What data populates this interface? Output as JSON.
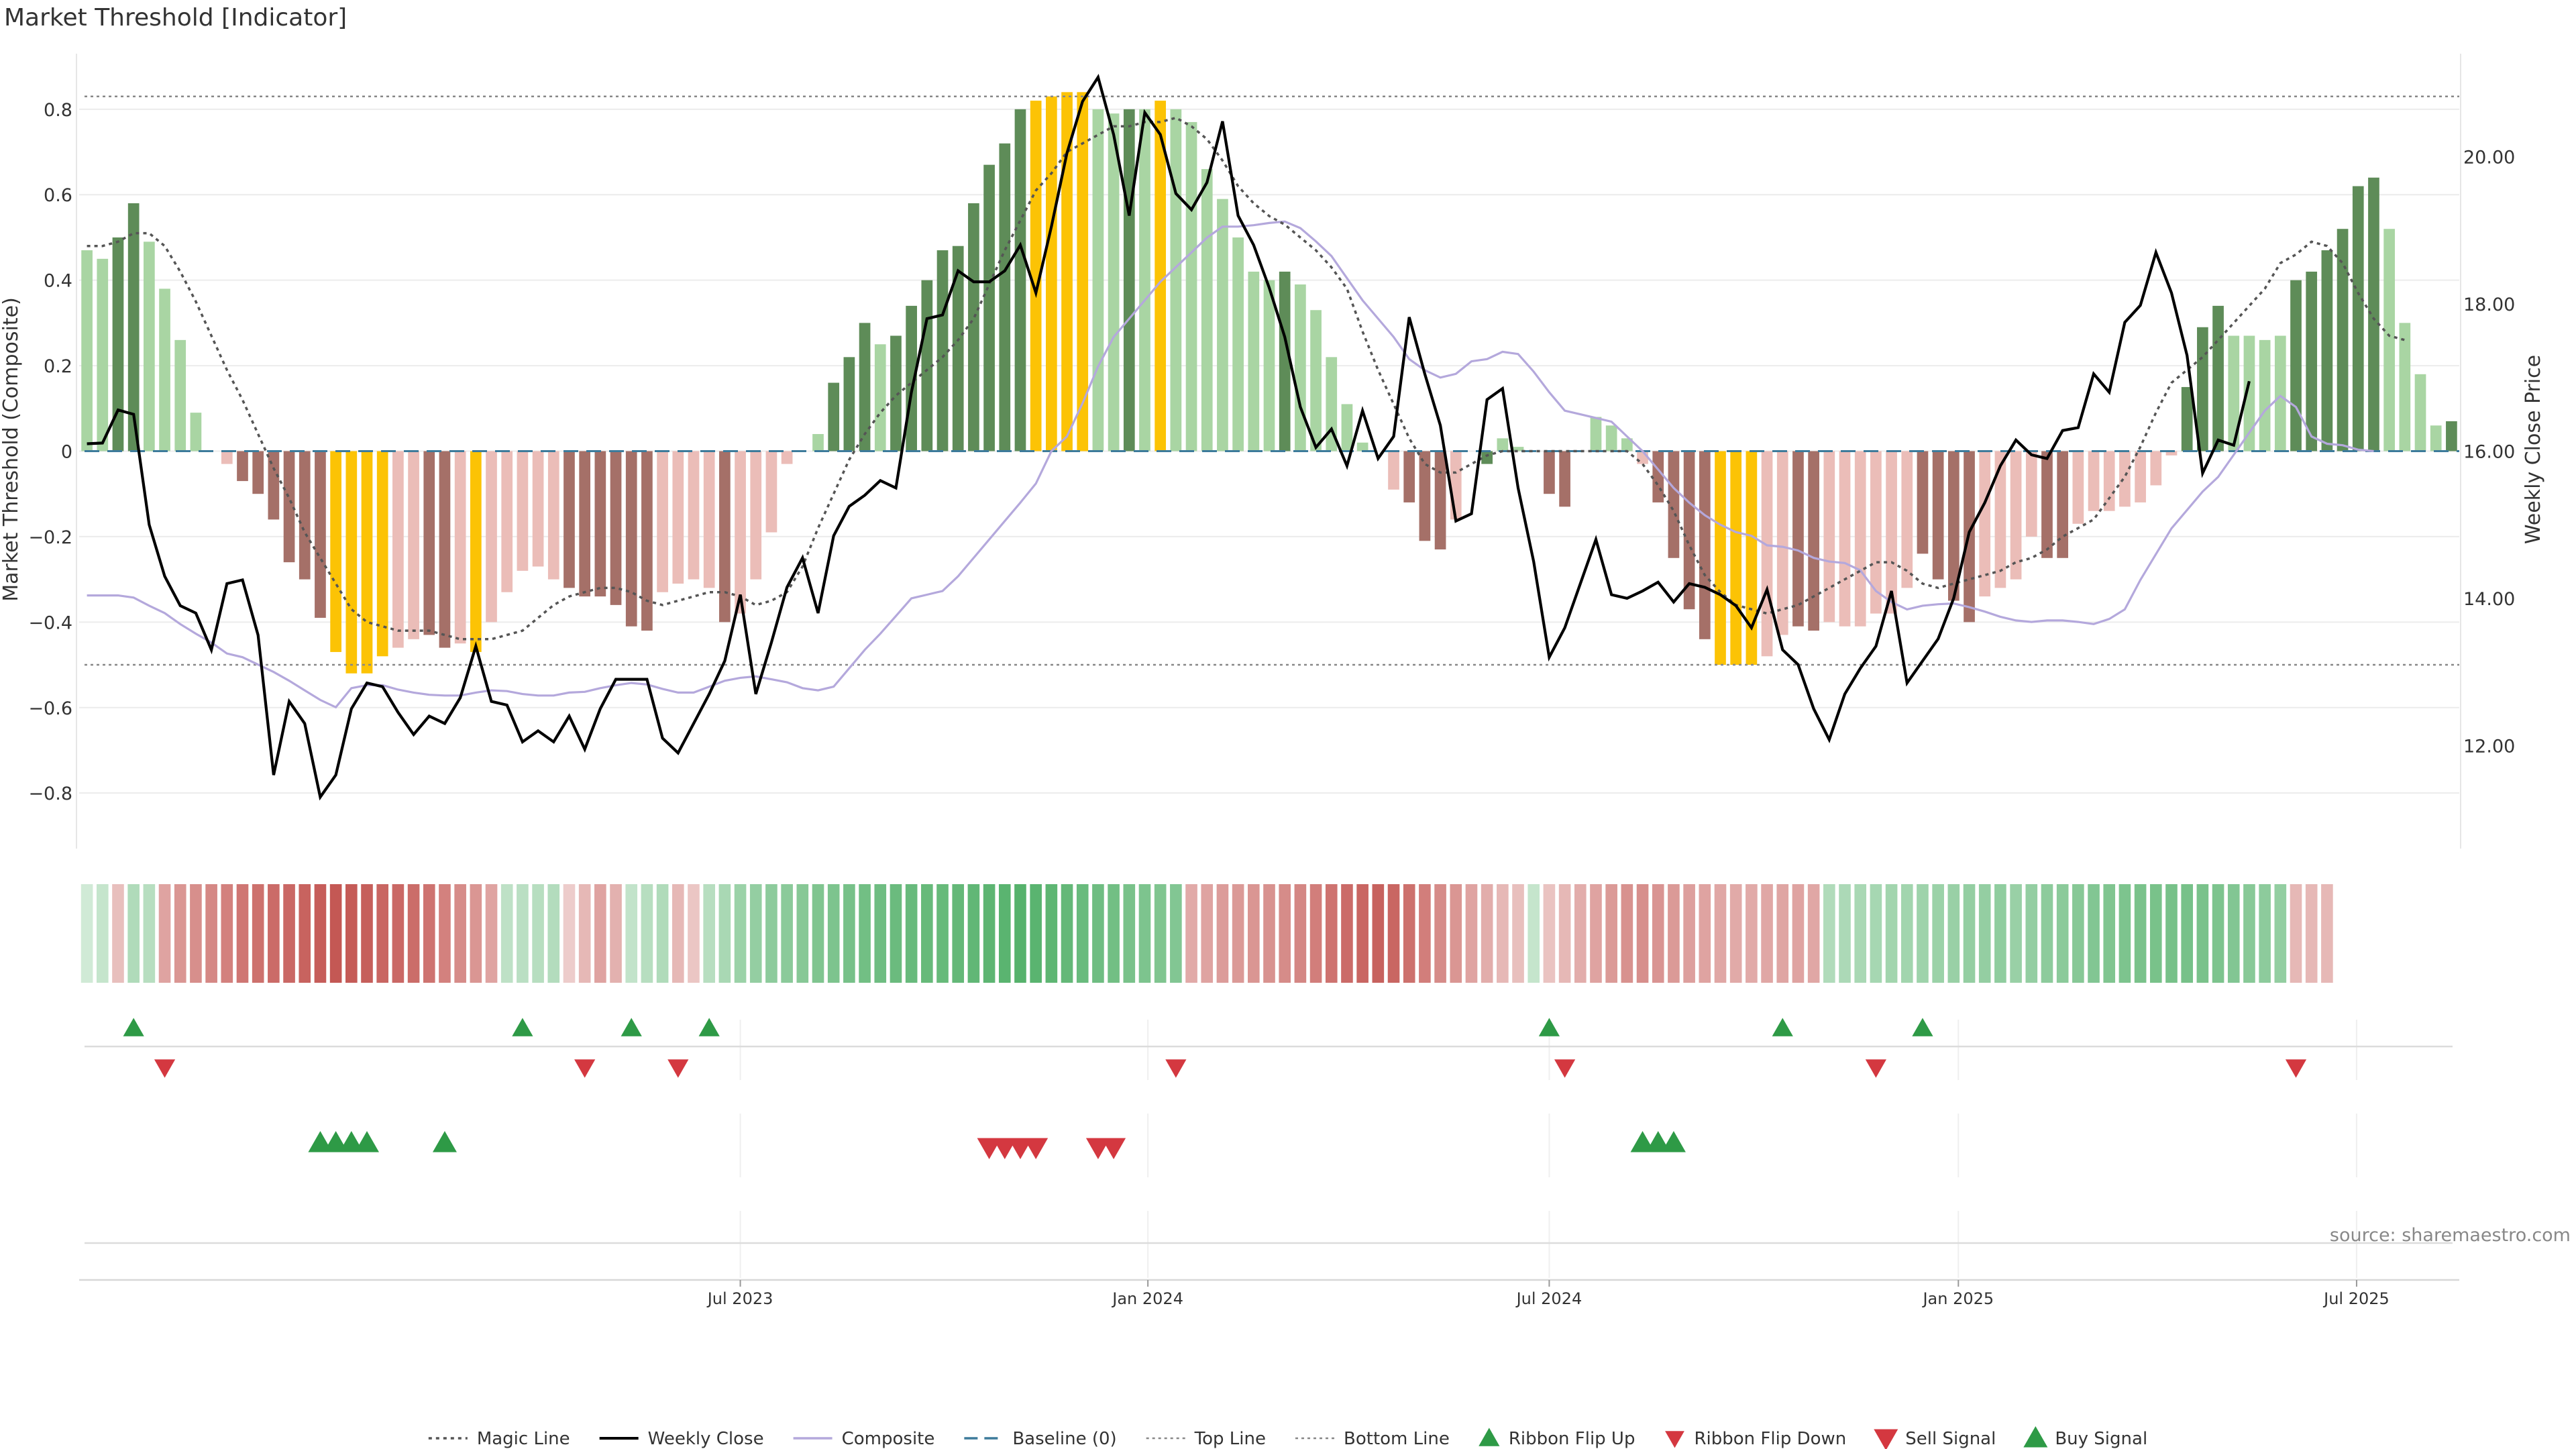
{
  "title": "Market Threshold [Indicator]",
  "source": "source: sharemaestro.com",
  "chart_data": {
    "type": "bar",
    "title": "Market Threshold [Indicator]",
    "left_axis": {
      "label": "Market Threshold (Composite)",
      "ylim": [
        -0.93,
        0.93
      ],
      "ticks": [
        -0.8,
        -0.6,
        -0.4,
        -0.2,
        0,
        0.2,
        0.4,
        0.6,
        0.8
      ],
      "tick_labels": [
        "−0.8",
        "−0.6",
        "−0.4",
        "−0.2",
        "0",
        "0.2",
        "0.4",
        "0.6",
        "0.8"
      ]
    },
    "right_axis": {
      "label": "Weekly Close Price",
      "ylim": [
        10.6,
        21.4
      ],
      "ticks": [
        12,
        14,
        16,
        18,
        20
      ],
      "tick_labels": [
        "12.00",
        "14.00",
        "16.00",
        "18.00",
        "20.00"
      ]
    },
    "x_axis": {
      "ticks": [
        {
          "week": 42.5,
          "label": "Jul 2023"
        },
        {
          "week": 68.7,
          "label": "Jan 2024"
        },
        {
          "week": 94.5,
          "label": "Jul 2024"
        },
        {
          "week": 120.8,
          "label": "Jan 2025"
        },
        {
          "week": 146.4,
          "label": "Jul 2025"
        }
      ]
    },
    "top_line": 0.83,
    "bottom_line": -0.5,
    "colors": {
      "strong_up": "#5e8c58",
      "weak_up": "#a9d5a3",
      "strong_down": "#a57068",
      "weak_down": "#ebbdb8",
      "extreme": "#fcc305",
      "weekly_close": "#000000",
      "composite": "#b4a8dc",
      "magic": "#555555",
      "baseline": "#3d7b9b",
      "threshold": "#888888",
      "ribbon_up": "#2e9a46",
      "ribbon_down": "#d43840"
    },
    "composite_bars": [
      0.47,
      0.45,
      0.5,
      0.58,
      0.49,
      0.38,
      0.26,
      0.09,
      0,
      -0.03,
      -0.07,
      -0.1,
      -0.16,
      -0.26,
      -0.3,
      -0.39,
      -0.47,
      -0.52,
      -0.52,
      -0.48,
      -0.46,
      -0.44,
      -0.43,
      -0.46,
      -0.45,
      -0.47,
      -0.4,
      -0.33,
      -0.28,
      -0.27,
      -0.3,
      -0.32,
      -0.34,
      -0.34,
      -0.36,
      -0.41,
      -0.42,
      -0.33,
      -0.31,
      -0.3,
      -0.32,
      -0.4,
      -0.38,
      -0.3,
      -0.19,
      -0.03,
      0,
      0.04,
      0.16,
      0.22,
      0.3,
      0.25,
      0.27,
      0.34,
      0.4,
      0.47,
      0.48,
      0.58,
      0.67,
      0.72,
      0.8,
      0.82,
      0.83,
      0.84,
      0.84,
      0.8,
      0.79,
      0.8,
      0.8,
      0.82,
      0.8,
      0.77,
      0.66,
      0.59,
      0.5,
      0.42,
      0.4,
      0.42,
      0.39,
      0.33,
      0.22,
      0.11,
      0.02,
      0,
      -0.09,
      -0.12,
      -0.21,
      -0.23,
      -0.16,
      0,
      -0.03,
      0.03,
      0.01,
      0,
      -0.1,
      -0.13,
      0,
      0.08,
      0.06,
      0.03,
      -0.03,
      -0.12,
      -0.25,
      -0.37,
      -0.44,
      -0.5,
      -0.5,
      -0.5,
      -0.48,
      -0.43,
      -0.41,
      -0.42,
      -0.4,
      -0.41,
      -0.41,
      -0.38,
      -0.38,
      -0.32,
      -0.24,
      -0.3,
      -0.35,
      -0.4,
      -0.34,
      -0.32,
      -0.3,
      -0.2,
      -0.25,
      -0.25,
      -0.17,
      -0.14,
      -0.14,
      -0.13,
      -0.12,
      -0.08,
      -0.01,
      0.15,
      0.29,
      0.34,
      0.27,
      0.27,
      0.26,
      0.27,
      0.4,
      0.42,
      0.47,
      0.52,
      0.62,
      0.64,
      0.52,
      0.3,
      0.18,
      0.06,
      0.07
    ],
    "bar_classes": [
      "wu",
      "wu",
      "su",
      "su",
      "wu",
      "wu",
      "wu",
      "wu",
      "wu",
      "wd",
      "sd",
      "sd",
      "sd",
      "sd",
      "sd",
      "sd",
      "x",
      "x",
      "x",
      "x",
      "wd",
      "wd",
      "sd",
      "sd",
      "wd",
      "x",
      "wd",
      "wd",
      "wd",
      "wd",
      "wd",
      "sd",
      "sd",
      "sd",
      "sd",
      "sd",
      "sd",
      "wd",
      "wd",
      "wd",
      "wd",
      "sd",
      "wd",
      "wd",
      "wd",
      "wd",
      "wu",
      "wu",
      "su",
      "su",
      "su",
      "wu",
      "su",
      "su",
      "su",
      "su",
      "su",
      "su",
      "su",
      "su",
      "su",
      "x",
      "x",
      "x",
      "x",
      "wu",
      "wu",
      "su",
      "wu",
      "x",
      "wu",
      "wu",
      "wu",
      "wu",
      "wu",
      "wu",
      "wu",
      "su",
      "wu",
      "wu",
      "wu",
      "wu",
      "wu",
      "wu",
      "wd",
      "sd",
      "sd",
      "sd",
      "wd",
      "wu",
      "su",
      "wu",
      "wu",
      "wu",
      "sd",
      "sd",
      "wu",
      "wu",
      "wu",
      "wu",
      "wd",
      "sd",
      "sd",
      "sd",
      "sd",
      "x",
      "x",
      "x",
      "wd",
      "wd",
      "sd",
      "sd",
      "wd",
      "wd",
      "wd",
      "wd",
      "wd",
      "wd",
      "sd",
      "sd",
      "sd",
      "sd",
      "wd",
      "wd",
      "wd",
      "wd",
      "sd",
      "sd",
      "wd",
      "wd",
      "wd",
      "wd",
      "wd",
      "wd",
      "wd",
      "su",
      "su",
      "su",
      "wu",
      "wu",
      "wu",
      "wu",
      "su",
      "su",
      "su",
      "su",
      "su",
      "su",
      "wu",
      "wu",
      "wu",
      "wu",
      "su"
    ],
    "series": [
      {
        "name": "Weekly Close",
        "axis": "right",
        "values": [
          16.1,
          16.11,
          16.56,
          16.5,
          15,
          14.3,
          13.9,
          13.8,
          13.3,
          14.2,
          14.25,
          13.5,
          11.6,
          12.6,
          12.3,
          11.3,
          11.6,
          12.5,
          12.85,
          12.8,
          12.45,
          12.15,
          12.4,
          12.3,
          12.65,
          13.35,
          12.6,
          12.55,
          12.05,
          12.2,
          12.05,
          12.4,
          11.95,
          12.5,
          12.9,
          12.9,
          12.9,
          12.1,
          11.9,
          12.3,
          12.7,
          13.15,
          14.05,
          12.7,
          13.4,
          14.15,
          14.55,
          13.8,
          14.85,
          15.25,
          15.4,
          15.6,
          15.5,
          16.8,
          17.8,
          17.85,
          18.45,
          18.3,
          18.3,
          18.45,
          18.8,
          18.15,
          19.05,
          20.05,
          20.75,
          21.08,
          20.3,
          19.2,
          20.6,
          20.3,
          19.5,
          19.28,
          19.65,
          20.48,
          19.2,
          18.8,
          18.22,
          17.55,
          16.6,
          16.05,
          16.3,
          15.8,
          16.55,
          15.9,
          16.2,
          17.82,
          17.05,
          16.35,
          15.05,
          15.15,
          16.7,
          16.85,
          15.5,
          14.5,
          13.2,
          13.6,
          14.2,
          14.8,
          14.05,
          14,
          14.1,
          14.22,
          13.95,
          14.2,
          14.15,
          14.05,
          13.9,
          13.6,
          14.12,
          13.3,
          13.1,
          12.5,
          12.08,
          12.7,
          13.05,
          13.35,
          14.1,
          12.85,
          13.15,
          13.45,
          14.0,
          14.9,
          15.3,
          15.8,
          16.15,
          15.95,
          15.9,
          16.28,
          16.32,
          17.05,
          16.8,
          17.75,
          17.98,
          18.7,
          18.15,
          17.3,
          15.7,
          16.15,
          16.08,
          16.95
        ]
      },
      {
        "name": "Composite",
        "axis": "right",
        "values": [
          14.04,
          14.04,
          14.04,
          14.01,
          13.9,
          13.8,
          13.65,
          13.52,
          13.4,
          13.25,
          13.2,
          13.1,
          13.0,
          12.88,
          12.75,
          12.62,
          12.52,
          12.78,
          12.82,
          12.82,
          12.76,
          12.72,
          12.69,
          12.68,
          12.68,
          12.72,
          12.75,
          12.74,
          12.7,
          12.68,
          12.68,
          12.72,
          12.73,
          12.78,
          12.82,
          12.85,
          12.83,
          12.77,
          12.72,
          12.72,
          12.8,
          12.88,
          12.92,
          12.94,
          12.9,
          12.86,
          12.78,
          12.75,
          12.8,
          13.05,
          13.3,
          13.52,
          13.76,
          14.0,
          14.05,
          14.1,
          14.3,
          14.55,
          14.8,
          15.05,
          15.3,
          15.56,
          16.0,
          16.2,
          16.65,
          17.15,
          17.55,
          17.8,
          18.05,
          18.3,
          18.5,
          18.7,
          18.9,
          19.05,
          19.05,
          19.07,
          19.1,
          19.12,
          19.03,
          18.85,
          18.65,
          18.35,
          18.05,
          17.8,
          17.55,
          17.25,
          17.1,
          17.0,
          17.05,
          17.22,
          17.25,
          17.35,
          17.32,
          17.08,
          16.8,
          16.55,
          16.5,
          16.45,
          16.4,
          16.2,
          16.0,
          15.75,
          15.5,
          15.3,
          15.13,
          15.0,
          14.9,
          14.85,
          14.72,
          14.7,
          14.65,
          14.55,
          14.5,
          14.48,
          14.38,
          14.1,
          13.95,
          13.85,
          13.9,
          13.92,
          13.93,
          13.88,
          13.82,
          13.75,
          13.7,
          13.68,
          13.7,
          13.7,
          13.68,
          13.65,
          13.72,
          13.85,
          14.25,
          14.6,
          14.95,
          15.2,
          15.45,
          15.65,
          15.95,
          16.25,
          16.55,
          16.75,
          16.6,
          16.2,
          16.1,
          16.08,
          16.02,
          16.0
        ]
      },
      {
        "name": "Magic Line",
        "axis": "left",
        "values": [
          0.48,
          0.48,
          0.49,
          0.51,
          0.51,
          0.48,
          0.42,
          0.35,
          0.27,
          0.19,
          0.12,
          0.04,
          -0.04,
          -0.11,
          -0.19,
          -0.25,
          -0.31,
          -0.37,
          -0.4,
          -0.41,
          -0.42,
          -0.42,
          -0.42,
          -0.43,
          -0.44,
          -0.44,
          -0.44,
          -0.43,
          -0.42,
          -0.39,
          -0.36,
          -0.34,
          -0.33,
          -0.32,
          -0.32,
          -0.33,
          -0.35,
          -0.36,
          -0.35,
          -0.34,
          -0.33,
          -0.33,
          -0.34,
          -0.36,
          -0.35,
          -0.33,
          -0.27,
          -0.18,
          -0.1,
          -0.02,
          0.04,
          0.09,
          0.13,
          0.16,
          0.19,
          0.22,
          0.26,
          0.31,
          0.39,
          0.47,
          0.54,
          0.61,
          0.65,
          0.7,
          0.72,
          0.74,
          0.76,
          0.76,
          0.77,
          0.77,
          0.78,
          0.76,
          0.73,
          0.68,
          0.62,
          0.58,
          0.55,
          0.53,
          0.5,
          0.47,
          0.43,
          0.38,
          0.28,
          0.19,
          0.11,
          0.03,
          -0.03,
          -0.05,
          -0.05,
          -0.03,
          -0.01,
          0.0,
          0.0,
          0.0,
          0.0,
          0.0,
          0.0,
          0.0,
          0.0,
          0.0,
          -0.03,
          -0.08,
          -0.14,
          -0.22,
          -0.29,
          -0.33,
          -0.36,
          -0.37,
          -0.38,
          -0.37,
          -0.36,
          -0.34,
          -0.32,
          -0.3,
          -0.28,
          -0.26,
          -0.26,
          -0.28,
          -0.31,
          -0.32,
          -0.31,
          -0.3,
          -0.29,
          -0.28,
          -0.26,
          -0.25,
          -0.23,
          -0.2,
          -0.18,
          -0.16,
          -0.11,
          -0.06,
          0.01,
          0.09,
          0.16,
          0.19,
          0.22,
          0.26,
          0.3,
          0.34,
          0.38,
          0.44,
          0.46,
          0.49,
          0.48,
          0.44,
          0.37,
          0.31,
          0.27,
          0.26
        ]
      }
    ],
    "ribbon": [
      0.12,
      0.2,
      -0.25,
      0.35,
      0.3,
      -0.45,
      -0.55,
      -0.6,
      -0.65,
      -0.7,
      -0.78,
      -0.82,
      -0.86,
      -0.88,
      -0.92,
      -0.96,
      -1.0,
      -0.98,
      -0.95,
      -0.9,
      -0.88,
      -0.85,
      -0.8,
      -0.7,
      -0.62,
      -0.55,
      -0.45,
      0.25,
      0.28,
      0.3,
      0.33,
      -0.15,
      -0.3,
      -0.45,
      -0.35,
      0.22,
      0.3,
      0.35,
      -0.3,
      -0.2,
      0.3,
      0.4,
      0.5,
      0.55,
      0.6,
      0.62,
      0.65,
      0.7,
      0.72,
      0.76,
      0.8,
      0.82,
      0.85,
      0.87,
      0.88,
      0.88,
      0.9,
      0.92,
      0.95,
      0.97,
      1.0,
      0.97,
      0.94,
      0.9,
      0.86,
      0.82,
      0.8,
      0.75,
      0.72,
      0.7,
      0.68,
      -0.4,
      -0.45,
      -0.5,
      -0.52,
      -0.55,
      -0.58,
      -0.62,
      -0.66,
      -0.72,
      -0.8,
      -0.86,
      -0.9,
      -0.93,
      -0.9,
      -0.82,
      -0.72,
      -0.62,
      -0.55,
      -0.45,
      -0.38,
      -0.3,
      -0.25,
      0.2,
      -0.22,
      -0.3,
      -0.38,
      -0.45,
      -0.52,
      -0.58,
      -0.6,
      -0.56,
      -0.52,
      -0.48,
      -0.45,
      -0.42,
      -0.4,
      -0.4,
      -0.42,
      -0.44,
      -0.45,
      -0.42,
      0.35,
      0.38,
      0.4,
      0.42,
      0.45,
      0.45,
      0.48,
      0.5,
      0.52,
      0.55,
      0.55,
      0.58,
      0.52,
      0.55,
      0.6,
      0.62,
      0.65,
      0.68,
      0.7,
      0.72,
      0.74,
      0.75,
      0.76,
      0.76,
      0.74,
      0.72,
      0.68,
      0.64,
      0.6,
      0.56,
      -0.3,
      -0.3,
      -0.3
    ],
    "ribbon_flip_up": [
      3,
      28,
      35,
      40,
      94,
      109,
      118
    ],
    "ribbon_flip_down": [
      5,
      32,
      38,
      70,
      95,
      115,
      142
    ],
    "buy_signals": [
      15,
      16,
      17,
      18,
      23,
      100,
      101,
      102
    ],
    "sell_signals": [
      58,
      59,
      60,
      61,
      65,
      66
    ]
  },
  "legend": [
    {
      "name": "Magic Line"
    },
    {
      "name": "Weekly Close"
    },
    {
      "name": "Composite"
    },
    {
      "name": "Baseline (0)"
    },
    {
      "name": "Top Line"
    },
    {
      "name": "Bottom Line"
    },
    {
      "name": "Ribbon Flip Up"
    },
    {
      "name": "Ribbon Flip Down"
    },
    {
      "name": "Sell Signal"
    },
    {
      "name": "Buy Signal"
    }
  ]
}
